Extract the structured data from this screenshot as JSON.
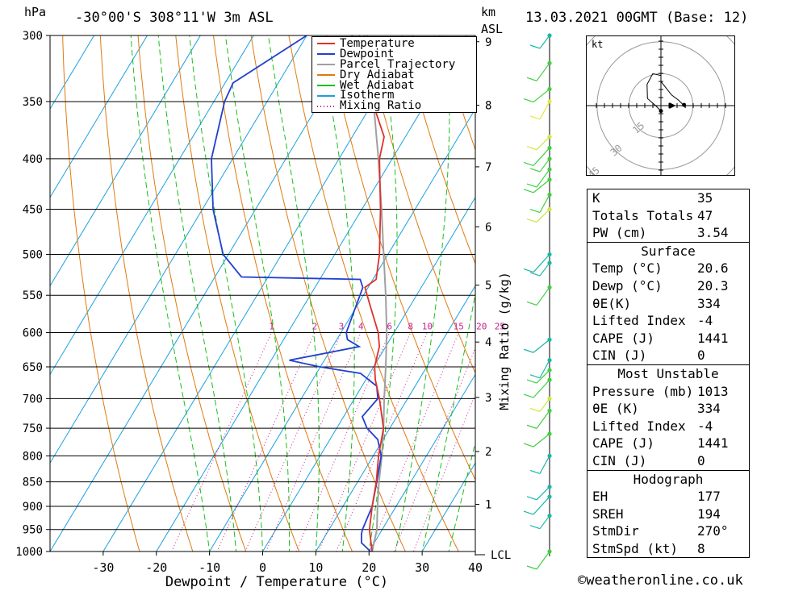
{
  "header": {
    "units_p": "hPa",
    "location": "-30°00'S  308°11'W  3m  ASL",
    "units_h1": "km",
    "units_h2": "ASL",
    "datetime": "13.03.2021  00GMT  (Base: 12)"
  },
  "chart_data": {
    "type": "skewt-logp",
    "xlabel": "Dewpoint / Temperature (°C)",
    "y2label": "Mixing Ratio (g/kg)",
    "ylabel": "hPa",
    "pressure_ticks": [
      300,
      350,
      400,
      450,
      500,
      550,
      600,
      650,
      700,
      750,
      800,
      850,
      900,
      950,
      1000
    ],
    "temperature_ticks": [
      -30,
      -20,
      -10,
      0,
      10,
      20,
      30,
      40
    ],
    "height_ticks_km": [
      1,
      2,
      3,
      4,
      5,
      6,
      7,
      8,
      9
    ],
    "lcl_label": "LCL",
    "mixing_ratio_labels": [
      "1",
      "2",
      "3",
      "4",
      "6",
      "8",
      "10",
      "15",
      "20",
      "25"
    ],
    "legend": [
      "Temperature",
      "Dewpoint",
      "Parcel Trajectory",
      "Dry Adiabat",
      "Wet Adiabat",
      "Isotherm",
      "Mixing Ratio"
    ],
    "series": [
      {
        "name": "Temperature",
        "color": "#e0302a",
        "points": [
          [
            1000,
            20.6
          ],
          [
            970,
            18.8
          ],
          [
            950,
            17.6
          ],
          [
            900,
            15.5
          ],
          [
            850,
            13.5
          ],
          [
            800,
            11.0
          ],
          [
            750,
            8.8
          ],
          [
            700,
            4.7
          ],
          [
            670,
            1.8
          ],
          [
            650,
            0.2
          ],
          [
            620,
            -1.2
          ],
          [
            600,
            -3.0
          ],
          [
            560,
            -8.0
          ],
          [
            540,
            -10.6
          ],
          [
            530,
            -9.4
          ],
          [
            500,
            -11.6
          ],
          [
            450,
            -16.5
          ],
          [
            400,
            -22.4
          ],
          [
            380,
            -24.0
          ],
          [
            350,
            -30.2
          ],
          [
            330,
            -34.8
          ],
          [
            310,
            -38.8
          ],
          [
            300,
            -41.5
          ]
        ]
      },
      {
        "name": "Dewpoint",
        "color": "#2040d0",
        "points": [
          [
            1000,
            20.3
          ],
          [
            980,
            17.6
          ],
          [
            960,
            16.6
          ],
          [
            950,
            16.3
          ],
          [
            900,
            15.5
          ],
          [
            850,
            13.6
          ],
          [
            800,
            11.5
          ],
          [
            770,
            9.0
          ],
          [
            750,
            5.7
          ],
          [
            730,
            3.5
          ],
          [
            700,
            4.4
          ],
          [
            680,
            2.8
          ],
          [
            660,
            -1.7
          ],
          [
            650,
            -10.1
          ],
          [
            640,
            -16.6
          ],
          [
            620,
            -5.0
          ],
          [
            610,
            -8.0
          ],
          [
            600,
            -9.0
          ],
          [
            540,
            -11.0
          ],
          [
            530,
            -12.4
          ],
          [
            527,
            -35.0
          ],
          [
            500,
            -41.0
          ],
          [
            450,
            -48.0
          ],
          [
            400,
            -54.0
          ],
          [
            350,
            -58.0
          ],
          [
            335,
            -58.5
          ],
          [
            300,
            -50.0
          ]
        ]
      },
      {
        "name": "Parcel Trajectory",
        "color": "#a0a0a0",
        "points": [
          [
            1000,
            20.6
          ],
          [
            950,
            19.0
          ],
          [
            900,
            16.5
          ],
          [
            850,
            14.0
          ],
          [
            800,
            11.6
          ],
          [
            750,
            8.8
          ],
          [
            700,
            5.6
          ],
          [
            650,
            2.3
          ],
          [
            600,
            -1.4
          ],
          [
            550,
            -5.8
          ],
          [
            500,
            -10.8
          ],
          [
            450,
            -16.3
          ],
          [
            400,
            -22.6
          ],
          [
            350,
            -30.0
          ],
          [
            300,
            -38.6
          ]
        ]
      }
    ],
    "isotherms_c": [
      -100,
      -90,
      -80,
      -70,
      -60,
      -50,
      -40,
      -30,
      -20,
      -10,
      0,
      10,
      20,
      30,
      40
    ],
    "dry_adiabats_theta_k": [
      250,
      260,
      270,
      280,
      290,
      300,
      310,
      320,
      330,
      340,
      350,
      360,
      370,
      380,
      390,
      400,
      410,
      420,
      430,
      440
    ],
    "wet_adiabats_thetaw_c": [
      -10,
      -5,
      0,
      5,
      10,
      15,
      20,
      25,
      30,
      35
    ],
    "mixing_ratios_gkg": [
      1,
      2,
      3,
      4,
      6,
      8,
      10,
      15,
      20,
      25
    ],
    "axis_ranges": {
      "temperature_c": [
        -40,
        40
      ],
      "pressure_hpa": [
        1000,
        300
      ]
    },
    "grid": true,
    "legend_placement": "top-right"
  },
  "hodograph": {
    "unit_label": "kt",
    "rings_kt": [
      "15",
      "30",
      "45"
    ],
    "points": [
      [
        0.0,
        -1.5
      ],
      [
        -1.5,
        0.0
      ],
      [
        -3.8,
        2.0
      ],
      [
        -3.9,
        6.0
      ],
      [
        -2.3,
        9.0
      ],
      [
        0.0,
        8.5
      ],
      [
        0.0,
        6.8
      ],
      [
        3.0,
        3.0
      ],
      [
        5.0,
        1.5
      ],
      [
        7.0,
        -0.5
      ],
      [
        6.5,
        0.2
      ]
    ],
    "storm_motion": [
      3.5,
      0.0
    ]
  },
  "indices": {
    "rows": [
      {
        "label": "K",
        "value": "35"
      },
      {
        "label": "Totals Totals",
        "value": "47"
      },
      {
        "label": "PW (cm)",
        "value": "3.54"
      }
    ],
    "surface_title": "Surface",
    "surface": [
      {
        "label": "Temp (°C)",
        "value": "20.6"
      },
      {
        "label": "Dewp (°C)",
        "value": "20.3"
      },
      {
        "label": "θE(K)",
        "value": "334"
      },
      {
        "label": "Lifted Index",
        "value": "-4"
      },
      {
        "label": "CAPE (J)",
        "value": "1441"
      },
      {
        "label": "CIN (J)",
        "value": "0"
      }
    ],
    "mu_title": "Most Unstable",
    "mu": [
      {
        "label": "Pressure (mb)",
        "value": "1013"
      },
      {
        "label": "θE (K)",
        "value": "334"
      },
      {
        "label": "Lifted Index",
        "value": "-4"
      },
      {
        "label": "CAPE (J)",
        "value": "1441"
      },
      {
        "label": "CIN (J)",
        "value": "0"
      }
    ],
    "hodo_title": "Hodograph",
    "hodo": [
      {
        "label": "EH",
        "value": "177"
      },
      {
        "label": "SREH",
        "value": "194"
      },
      {
        "label": "StmDir",
        "value": "270°"
      },
      {
        "label": "StmSpd (kt)",
        "value": "8"
      }
    ]
  },
  "wind_profile": {
    "levels": [
      {
        "p": 300,
        "color": "#19b8a8"
      },
      {
        "p": 320,
        "color": "#3fd040"
      },
      {
        "p": 340,
        "color": "#3fd040"
      },
      {
        "p": 350,
        "color": "#e8e840"
      },
      {
        "p": 380,
        "color": "#d0e840"
      },
      {
        "p": 390,
        "color": "#3fd040"
      },
      {
        "p": 400,
        "color": "#3fd040"
      },
      {
        "p": 410,
        "color": "#3fd040"
      },
      {
        "p": 420,
        "color": "#3fd040"
      },
      {
        "p": 435,
        "color": "#3fd040"
      },
      {
        "p": 450,
        "color": "#c8e840"
      },
      {
        "p": 500,
        "color": "#19b8a8"
      },
      {
        "p": 510,
        "color": "#19b8a8"
      },
      {
        "p": 540,
        "color": "#3fd040"
      },
      {
        "p": 610,
        "color": "#19b8a8"
      },
      {
        "p": 640,
        "color": "#19b8a8"
      },
      {
        "p": 655,
        "color": "#3fd040"
      },
      {
        "p": 670,
        "color": "#3fd040"
      },
      {
        "p": 700,
        "color": "#c8e840"
      },
      {
        "p": 720,
        "color": "#3fd040"
      },
      {
        "p": 760,
        "color": "#3fd040"
      },
      {
        "p": 800,
        "color": "#19b8a8"
      },
      {
        "p": 860,
        "color": "#19b8a8"
      },
      {
        "p": 880,
        "color": "#19b8a8"
      },
      {
        "p": 920,
        "color": "#19b8a8"
      },
      {
        "p": 1000,
        "color": "#3fd040"
      }
    ]
  },
  "footer": {
    "credit": "©weatheronline.co.uk"
  }
}
